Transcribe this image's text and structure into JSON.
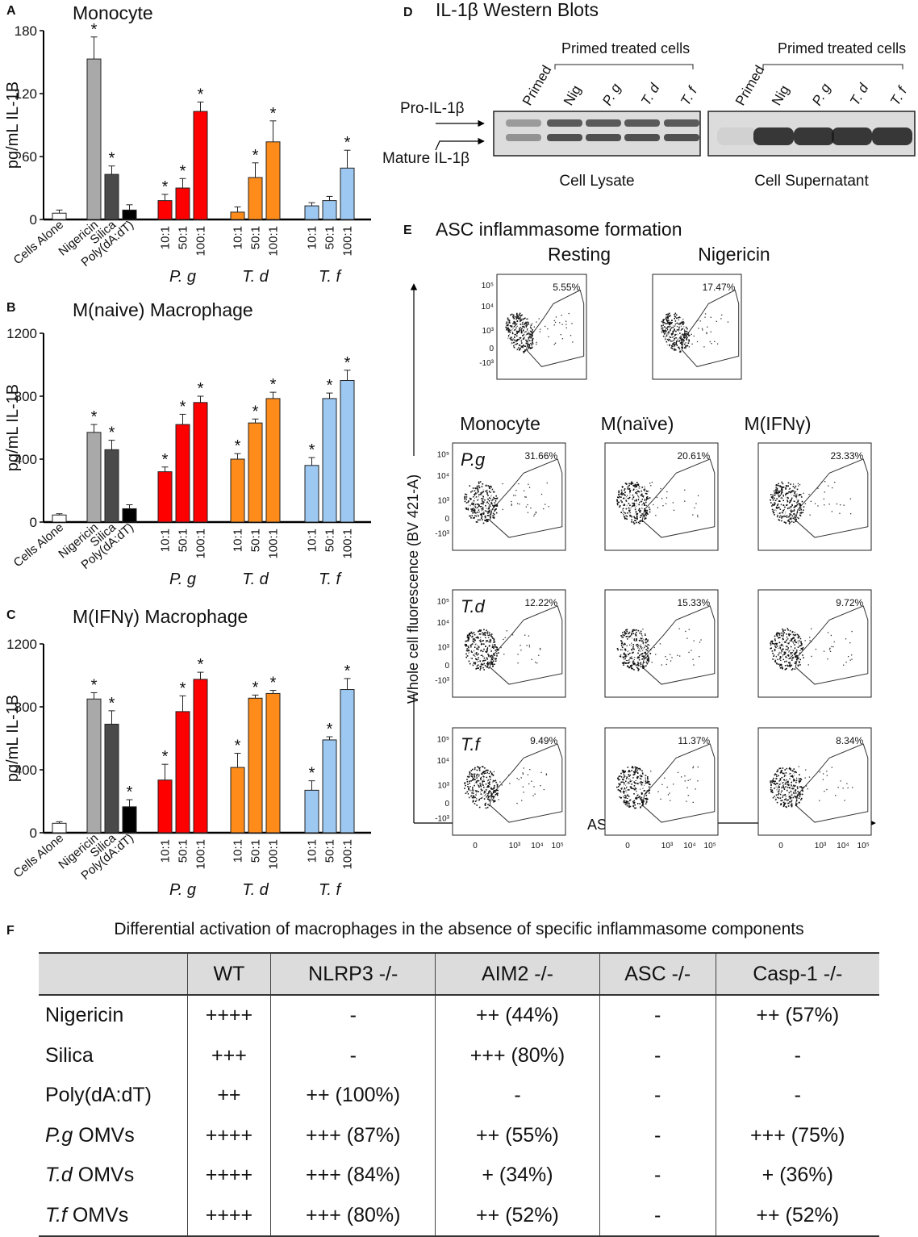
{
  "colors": {
    "white": "#ffffff",
    "lightgray": "#a9a9a9",
    "darkgray": "#4a4a4a",
    "black": "#000000",
    "red": "#ff0000",
    "orange": "#ff8c1a",
    "blue": "#9cc8f2"
  },
  "chart_data": [
    {
      "type": "bar",
      "panel": "A",
      "title": "Monocyte",
      "ylabel": "pg/mL IL-1B",
      "ylim": [
        0,
        180
      ],
      "yticks": [
        "0",
        "60",
        "120",
        "180"
      ],
      "categories": [
        "Cells Alone",
        "Nigericin",
        "Silica",
        "Poly(dA:dT)",
        "10:1",
        "50:1",
        "100:1",
        "10:1",
        "50:1",
        "100:1",
        "10:1",
        "50:1",
        "100:1"
      ],
      "groups": [
        "P. g",
        "T. d",
        "T. f"
      ],
      "values": [
        6,
        153,
        43,
        9,
        18,
        30,
        103,
        7,
        40,
        74,
        13,
        18,
        49
      ],
      "errors": [
        3,
        21,
        8,
        5,
        6,
        9,
        9,
        5,
        14,
        20,
        3,
        4,
        17
      ],
      "significant": [
        false,
        true,
        true,
        false,
        true,
        true,
        true,
        false,
        true,
        true,
        false,
        false,
        true
      ],
      "bar_colors": [
        "white",
        "lightgray",
        "darkgray",
        "black",
        "red",
        "red",
        "red",
        "orange",
        "orange",
        "orange",
        "blue",
        "blue",
        "blue"
      ]
    },
    {
      "type": "bar",
      "panel": "B",
      "title": "M(naive) Macrophage",
      "ylabel": "pg/mL IL-1B",
      "ylim": [
        0,
        1200
      ],
      "yticks": [
        "0",
        "400",
        "800",
        "1200"
      ],
      "categories": [
        "Cells Alone",
        "Nigericin",
        "Silica",
        "Poly(dA:dT)",
        "10:1",
        "50:1",
        "100:1",
        "10:1",
        "50:1",
        "100:1",
        "10:1",
        "50:1",
        "100:1"
      ],
      "groups": [
        "P. g",
        "T. d",
        "T. f"
      ],
      "values": [
        45,
        570,
        460,
        85,
        320,
        620,
        760,
        400,
        630,
        785,
        360,
        785,
        900
      ],
      "errors": [
        8,
        50,
        60,
        25,
        30,
        65,
        40,
        35,
        25,
        40,
        50,
        35,
        65
      ],
      "significant": [
        false,
        true,
        true,
        false,
        true,
        true,
        true,
        true,
        true,
        true,
        true,
        true,
        true
      ],
      "bar_colors": [
        "white",
        "lightgray",
        "darkgray",
        "black",
        "red",
        "red",
        "red",
        "orange",
        "orange",
        "orange",
        "blue",
        "blue",
        "blue"
      ]
    },
    {
      "type": "bar",
      "panel": "C",
      "title": "M(IFNγ) Macrophage",
      "ylabel": "pg/mL IL-1B",
      "ylim": [
        0,
        1200
      ],
      "yticks": [
        "0",
        "400",
        "800",
        "1200"
      ],
      "categories": [
        "Cells Alone",
        "Nigericin",
        "Silica",
        "Poly(dA:dT)",
        "10:1",
        "50:1",
        "100:1",
        "10:1",
        "50:1",
        "100:1",
        "10:1",
        "50:1",
        "100:1"
      ],
      "groups": [
        "P. g",
        "T. d",
        "T. f"
      ],
      "values": [
        60,
        850,
        690,
        165,
        335,
        770,
        975,
        415,
        855,
        885,
        270,
        590,
        910
      ],
      "errors": [
        10,
        40,
        85,
        45,
        100,
        100,
        45,
        90,
        20,
        20,
        60,
        20,
        70
      ],
      "significant": [
        false,
        true,
        true,
        true,
        true,
        true,
        true,
        true,
        true,
        true,
        true,
        true,
        true
      ],
      "bar_colors": [
        "white",
        "lightgray",
        "darkgray",
        "black",
        "red",
        "red",
        "red",
        "orange",
        "orange",
        "orange",
        "blue",
        "blue",
        "blue"
      ]
    }
  ],
  "western": {
    "label": "D",
    "title": "IL-1β Western Blots",
    "pro_label": "Pro-IL-1β",
    "mature_label": "Mature IL-1β",
    "treated_label": "Primed treated cells",
    "lanes": [
      "Primed",
      "Nig",
      "P. g",
      "T. d",
      "T. f"
    ],
    "lysate_label": "Cell Lysate",
    "supernatant_label": "Cell Supernatant"
  },
  "flow": {
    "label": "E",
    "title": "ASC inflammasome formation",
    "resting_label": "Resting",
    "nigericin_label": "Nigericin",
    "resting_pct": "5.55%",
    "nigericin_pct": "17.47%",
    "columns": [
      "Monocyte",
      "M(naïve)",
      "M(IFNγ)"
    ],
    "rows": [
      {
        "label": "P.g",
        "pcts": [
          "31.66%",
          "20.61%",
          "23.33%"
        ]
      },
      {
        "label": "T.d",
        "pcts": [
          "12.22%",
          "15.33%",
          "9.72%"
        ]
      },
      {
        "label": "T.f",
        "pcts": [
          "9.49%",
          "11.37%",
          "8.34%"
        ]
      }
    ],
    "y_axis": "Whole cell fluorescence (BV 421-A)",
    "x_axis": "ASC (FITC-A)",
    "y_ticks": [
      "10⁵",
      "10⁴",
      "10³",
      "0",
      "-10³"
    ],
    "x_ticks": [
      "0",
      "10³",
      "10⁴",
      "10⁵"
    ]
  },
  "table": {
    "label": "F",
    "title": "Differential activation of macrophages in the absence of specific inflammasome components",
    "headers": [
      "",
      "WT",
      "NLRP3 -/-",
      "AIM2 -/-",
      "ASC -/-",
      "Casp-1 -/-"
    ],
    "rows": [
      [
        "Nigericin",
        "++++",
        "-",
        "++ (44%)",
        "-",
        "++ (57%)"
      ],
      [
        "Silica",
        "+++",
        "-",
        "+++ (80%)",
        "-",
        "-"
      ],
      [
        "Poly(dA:dT)",
        "++",
        "++ (100%)",
        "-",
        "-",
        "-"
      ],
      [
        "P.g OMVs",
        "++++",
        "+++ (87%)",
        "++ (55%)",
        "-",
        "+++ (75%)"
      ],
      [
        "T.d OMVs",
        "++++",
        "+++ (84%)",
        "+ (34%)",
        "-",
        "+ (36%)"
      ],
      [
        "T.f OMVs",
        "++++",
        "+++ (80%)",
        "++ (52%)",
        "-",
        "++ (52%)"
      ]
    ]
  }
}
